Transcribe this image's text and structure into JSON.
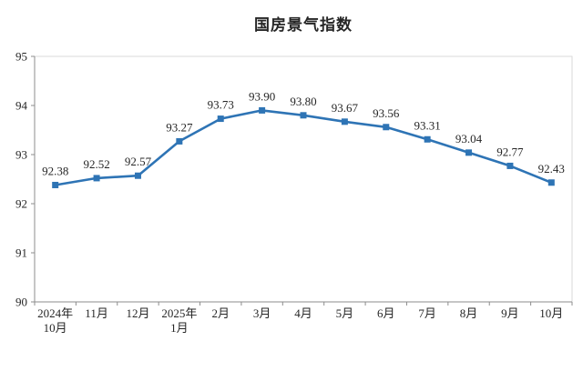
{
  "page": {
    "background": "#ffffff"
  },
  "chart_data": {
    "type": "line",
    "title": "国房景气指数",
    "categories": [
      "2024年\n10月",
      "11月",
      "12月",
      "2025年\n1月",
      "2月",
      "3月",
      "4月",
      "5月",
      "6月",
      "7月",
      "8月",
      "9月",
      "10月"
    ],
    "values": [
      92.38,
      92.52,
      92.57,
      93.27,
      93.73,
      93.9,
      93.8,
      93.67,
      93.56,
      93.31,
      93.04,
      92.77,
      92.43
    ],
    "data_label_format": "2dp",
    "ylim": [
      90,
      95
    ],
    "yticks": [
      90,
      91,
      92,
      93,
      94,
      95
    ],
    "grid": false,
    "legend_position": "none",
    "line_color": "#2E74B5",
    "marker_style": "square",
    "axis_color": "#8C8C8C",
    "frame_color": "#D9D9D9",
    "text_color": "#262626"
  }
}
